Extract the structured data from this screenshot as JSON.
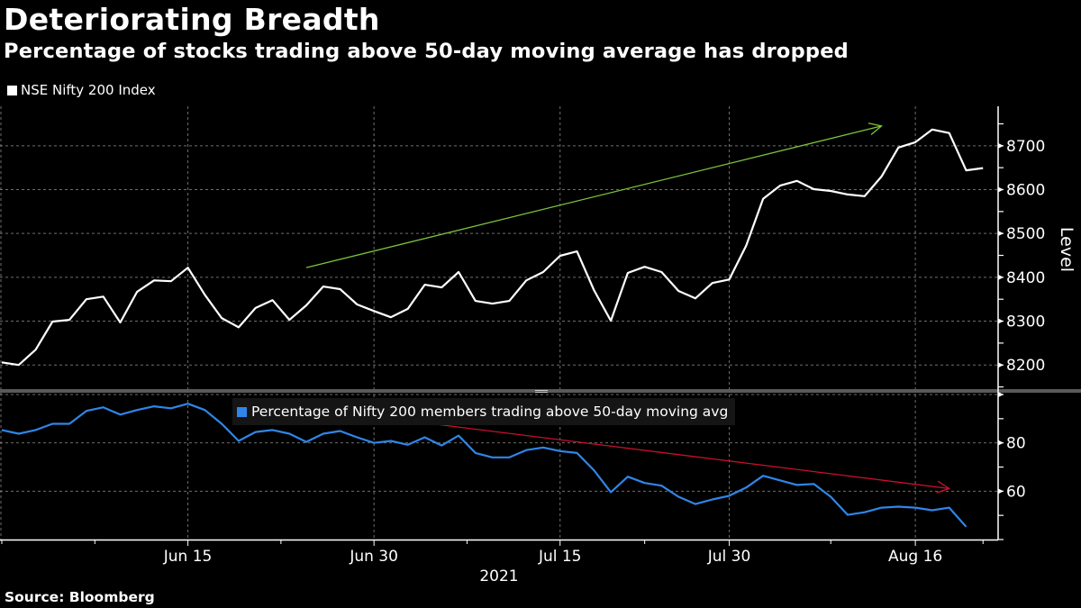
{
  "header": {
    "title": "Deteriorating Breadth",
    "subtitle": "Percentage of stocks trading above 50-day moving average has dropped"
  },
  "footer": {
    "source": "Source: Bloomberg"
  },
  "colors": {
    "background": "#000000",
    "index_line": "#ffffff",
    "breadth_line": "#2f86e8",
    "uptrend_arrow": "#7cc43a",
    "downtrend_arrow": "#c8102e",
    "grid": "#8a8a8a"
  },
  "chart_data": [
    {
      "type": "line",
      "panel": "upper",
      "title": "Deteriorating Breadth",
      "legend": [
        "NSE Nifty 200 Index"
      ],
      "legend_position": "top-left",
      "ylabel": "Level",
      "y_axis_side": "right",
      "ylim": [
        8145,
        8790
      ],
      "yticks": [
        8200,
        8300,
        8400,
        8500,
        8600,
        8700
      ],
      "grid": true,
      "x": [
        "2021-05-31",
        "2021-06-01",
        "2021-06-02",
        "2021-06-03",
        "2021-06-04",
        "2021-06-07",
        "2021-06-08",
        "2021-06-09",
        "2021-06-10",
        "2021-06-11",
        "2021-06-14",
        "2021-06-15",
        "2021-06-16",
        "2021-06-17",
        "2021-06-18",
        "2021-06-21",
        "2021-06-22",
        "2021-06-23",
        "2021-06-24",
        "2021-06-25",
        "2021-06-28",
        "2021-06-29",
        "2021-06-30",
        "2021-07-01",
        "2021-07-02",
        "2021-07-05",
        "2021-07-06",
        "2021-07-07",
        "2021-07-08",
        "2021-07-09",
        "2021-07-12",
        "2021-07-13",
        "2021-07-14",
        "2021-07-15",
        "2021-07-16",
        "2021-07-19",
        "2021-07-20",
        "2021-07-22",
        "2021-07-23",
        "2021-07-26",
        "2021-07-27",
        "2021-07-28",
        "2021-07-29",
        "2021-07-30",
        "2021-08-02",
        "2021-08-03",
        "2021-08-04",
        "2021-08-05",
        "2021-08-06",
        "2021-08-09",
        "2021-08-10",
        "2021-08-11",
        "2021-08-12",
        "2021-08-13",
        "2021-08-16",
        "2021-08-17",
        "2021-08-18",
        "2021-08-20",
        "2021-08-23"
      ],
      "series": [
        {
          "name": "NSE Nifty 200 Index",
          "values": [
            8206,
            8200,
            8235,
            8299,
            8303,
            8350,
            8356,
            8297,
            8367,
            8393,
            8391,
            8422,
            8360,
            8307,
            8286,
            8330,
            8348,
            8303,
            8336,
            8379,
            8373,
            8338,
            8323,
            8309,
            8328,
            8383,
            8377,
            8412,
            8346,
            8340,
            8346,
            8393,
            8412,
            8449,
            8459,
            8371,
            8301,
            8410,
            8424,
            8412,
            8369,
            8352,
            8387,
            8395,
            8472,
            8579,
            8609,
            8620,
            8601,
            8597,
            8589,
            8585,
            8630,
            8696,
            8708,
            8737,
            8729,
            8644,
            8649
          ]
        }
      ],
      "annotations": [
        {
          "type": "arrow",
          "color": "#7cc43a",
          "from": {
            "x_index": 18,
            "y": 8422
          },
          "to": {
            "x_index": 52,
            "y": 8745
          }
        }
      ]
    },
    {
      "type": "line",
      "panel": "lower",
      "legend": [
        "Percentage of Nifty 200 members trading above 50-day moving avg"
      ],
      "legend_position": "top-center",
      "ylabel": "",
      "y_axis_side": "right",
      "ylim": [
        40,
        100
      ],
      "yticks": [
        60,
        80
      ],
      "grid": true,
      "xlabel": "2021",
      "xticks": [
        {
          "label": "Jun 15",
          "x_index": 11
        },
        {
          "label": "Jun 30",
          "x_index": 22
        },
        {
          "label": "Jul 15",
          "x_index": 33
        },
        {
          "label": "Jul 30",
          "x_index": 43
        },
        {
          "label": "Aug 16",
          "x_index": 54
        }
      ],
      "series": [
        {
          "name": "Percentage of Nifty 200 members trading above 50-day moving avg",
          "values": [
            85.3,
            83.8,
            85.3,
            87.9,
            87.9,
            93.2,
            94.7,
            91.7,
            93.6,
            95.1,
            94.3,
            96.2,
            93.6,
            87.9,
            80.8,
            84.5,
            85.3,
            83.8,
            80.4,
            83.8,
            84.9,
            82.3,
            80.0,
            80.8,
            79.2,
            82.3,
            78.9,
            83.0,
            75.8,
            74.0,
            74.0,
            77.0,
            78.1,
            76.6,
            75.8,
            68.7,
            59.6,
            66.0,
            63.4,
            62.3,
            57.7,
            54.7,
            56.6,
            58.1,
            61.5,
            66.4,
            64.5,
            62.6,
            63.0,
            57.7,
            50.2,
            51.3,
            53.2,
            53.6,
            53.2,
            52.1,
            53.2,
            45.3,
            null
          ]
        }
      ],
      "annotations": [
        {
          "type": "arrow",
          "color": "#c8102e",
          "from": {
            "x_index": 17.7,
            "y": 94.7
          },
          "to": {
            "x_index": 56,
            "y": 61.1
          }
        }
      ]
    }
  ]
}
